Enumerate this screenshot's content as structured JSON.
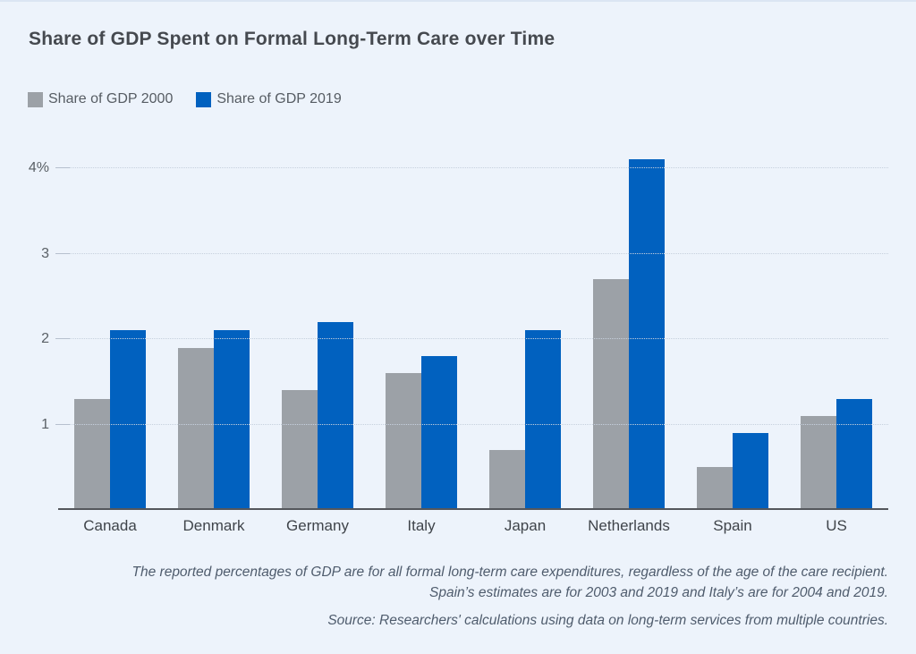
{
  "title": "Share of GDP Spent on Formal Long-Term Care over Time",
  "legend": [
    {
      "label": "Share of GDP 2000",
      "color": "#9ca1a7"
    },
    {
      "label": "Share of GDP 2019",
      "color": "#0161bf"
    }
  ],
  "footnotes": {
    "line1": "The reported percentages of GDP are for all formal long-term care expenditures, regardless of the age of the care recipient.",
    "line2": "Spain’s estimates are for 2003 and 2019 and Italy’s are for 2004 and 2019.",
    "source": "Source: Researchers' calculations using data on long-term services from multiple countries."
  },
  "colors": {
    "background": "#edf3fb",
    "bar_2000": "#9ca1a7",
    "bar_2019": "#0161bf",
    "axis_line": "#54575c",
    "gridline": "#c6d0dd",
    "title_text": "#45494f",
    "axis_text": "#5a6066",
    "category_text": "#3f444a",
    "footnote_text": "#4f5c6d"
  },
  "chart_data": {
    "type": "bar",
    "title": "Share of GDP Spent on Formal Long-Term Care over Time",
    "categories": [
      "Canada",
      "Denmark",
      "Germany",
      "Italy",
      "Japan",
      "Netherlands",
      "Spain",
      "US"
    ],
    "series": [
      {
        "name": "Share of GDP 2000",
        "values": [
          1.3,
          1.9,
          1.4,
          1.6,
          0.7,
          2.7,
          0.5,
          1.1
        ]
      },
      {
        "name": "Share of GDP 2019",
        "values": [
          2.1,
          2.1,
          2.2,
          1.8,
          2.1,
          4.1,
          0.9,
          1.3
        ]
      }
    ],
    "xlabel": "",
    "ylabel": "",
    "ylim": [
      0,
      4.17
    ],
    "y_ticks": [
      {
        "value": 1,
        "label": "1"
      },
      {
        "value": 2,
        "label": "2"
      },
      {
        "value": 3,
        "label": "3"
      },
      {
        "value": 4,
        "label": "4%"
      }
    ],
    "grid": true,
    "legend_position": "top-left"
  }
}
